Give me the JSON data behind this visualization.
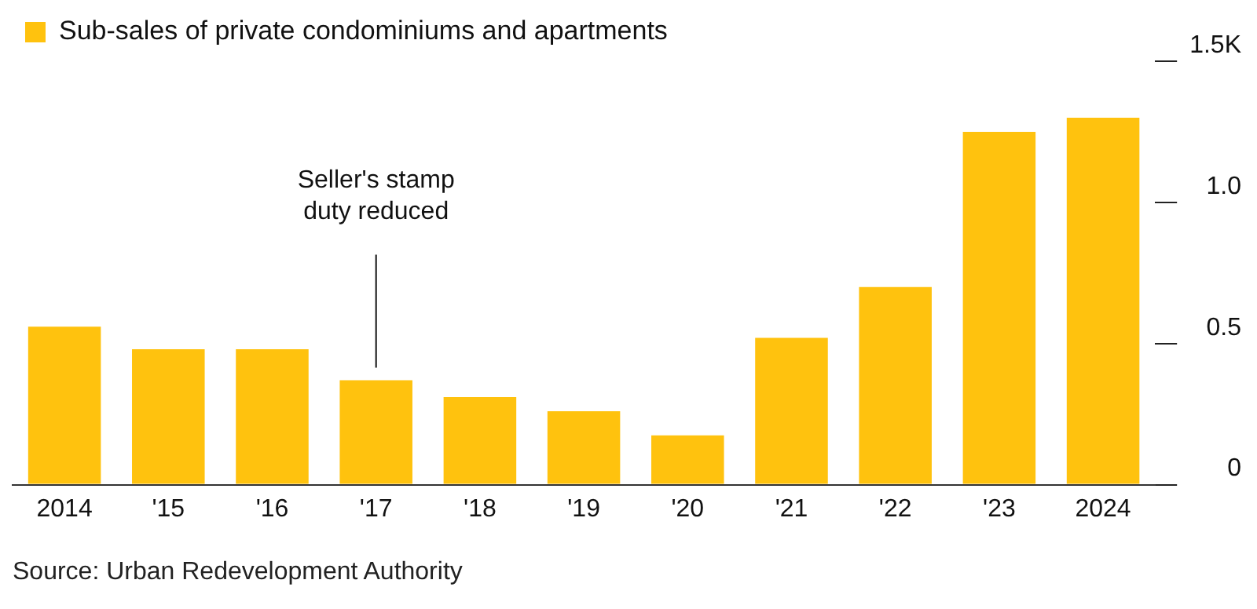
{
  "chart_data": {
    "type": "bar",
    "categories": [
      "2014",
      "'15",
      "'16",
      "'17",
      "'18",
      "'19",
      "'20",
      "'21",
      "'22",
      "'23",
      "2024"
    ],
    "series": [
      {
        "name": "Sub-sales of private condominiums and apartments",
        "color": "#ffc20e",
        "values": [
          0.56,
          0.48,
          0.48,
          0.37,
          0.31,
          0.26,
          0.175,
          0.52,
          0.7,
          1.25,
          1.3
        ]
      }
    ],
    "ylim": [
      0,
      1.5
    ],
    "yticks": [
      0,
      0.5,
      {
        "value": 1,
        "label": "1.0"
      },
      {
        "value": 1.5,
        "label": "1.5K"
      }
    ],
    "grid": false,
    "legend": "top left",
    "annotations": [
      {
        "text": "Seller's stamp duty reduced",
        "x": "'17",
        "y": 0.37
      },
      "Source: Urban Redevelopment Authority"
    ]
  }
}
